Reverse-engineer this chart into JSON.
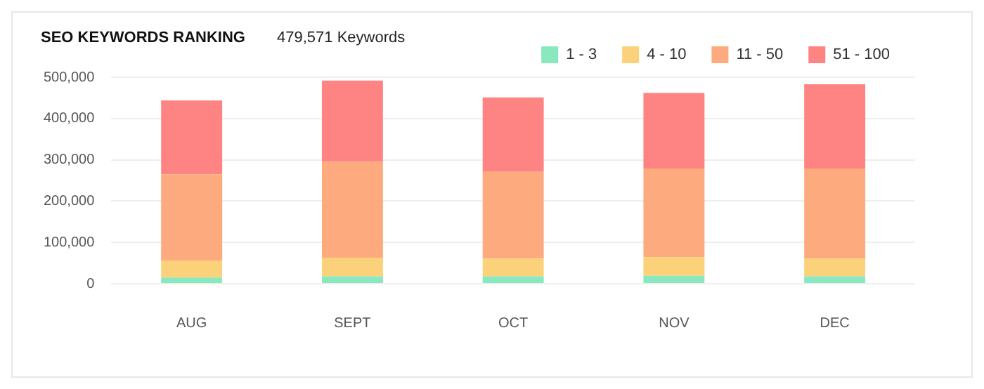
{
  "chart_data": {
    "type": "bar",
    "title": "SEO KEYWORDS RANKING",
    "subtitle": "479,571 Keywords",
    "categories": [
      "AUG",
      "SEPT",
      "OCT",
      "NOV",
      "DEC"
    ],
    "series": [
      {
        "name": "1 - 3",
        "color": "#8ae8be",
        "values": [
          15000,
          18000,
          18000,
          19000,
          18000
        ]
      },
      {
        "name": "4 - 10",
        "color": "#fbd27a",
        "values": [
          41000,
          45000,
          43000,
          45000,
          43000
        ]
      },
      {
        "name": "11 - 50",
        "color": "#fcaa7e",
        "values": [
          209000,
          232000,
          210000,
          215000,
          218000
        ]
      },
      {
        "name": "51 - 100",
        "color": "#fe8484",
        "values": [
          179000,
          197000,
          180000,
          183000,
          204000
        ]
      }
    ],
    "stacked": true,
    "ylim": [
      0,
      500000
    ],
    "yticks": [
      0,
      {
        "value": 100000,
        "label": "100,000"
      },
      {
        "value": 200000,
        "label": "200,000"
      },
      {
        "value": 300000,
        "label": "300,000"
      },
      {
        "value": 400000,
        "label": "400,000"
      },
      {
        "value": 500000,
        "label": "500,000"
      }
    ],
    "grid": "y",
    "legend": "top right"
  }
}
